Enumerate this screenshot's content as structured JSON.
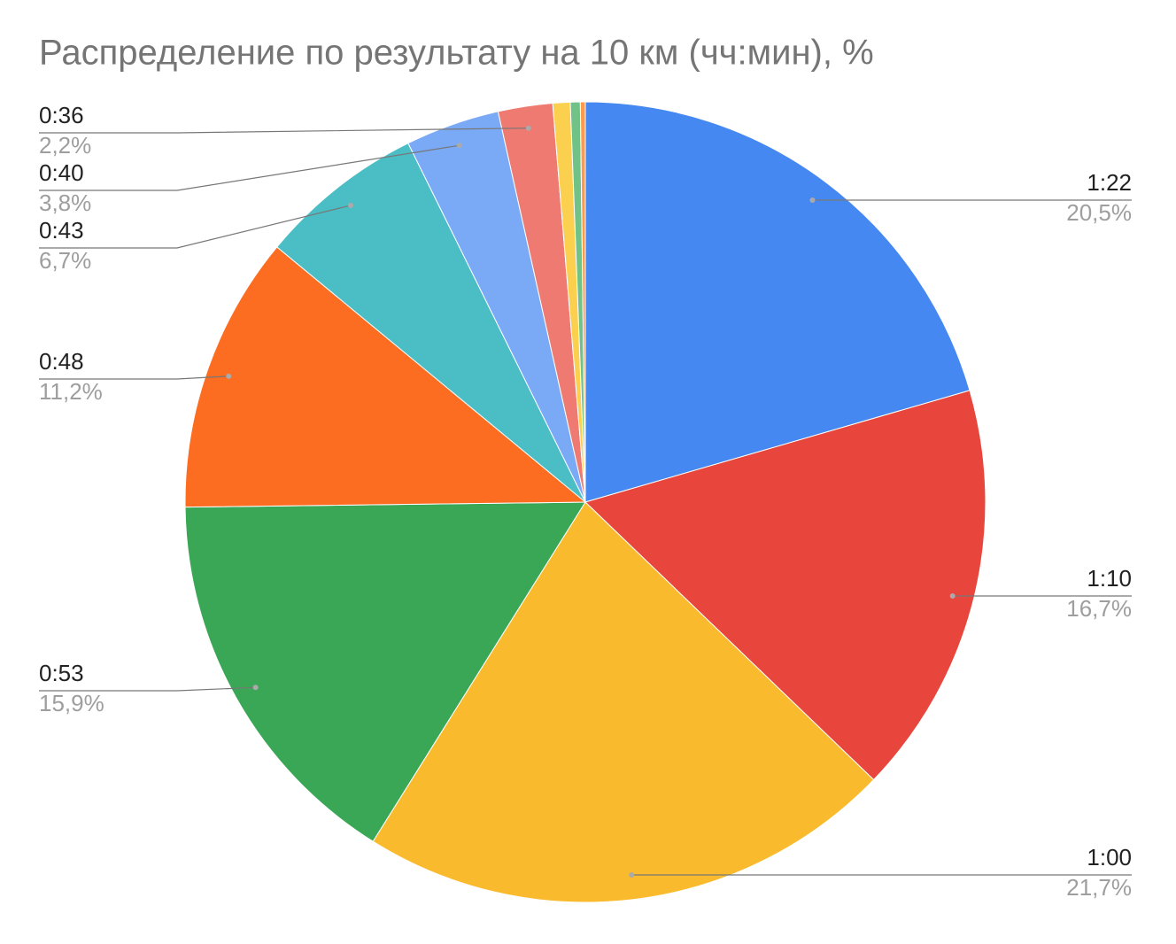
{
  "chart_data": {
    "type": "pie",
    "title": "Распределение по результату на 10 км (чч:мин), %",
    "categories": [
      "1:22",
      "1:10",
      "1:00",
      "0:53",
      "0:48",
      "0:43",
      "0:40",
      "0:36",
      null,
      null,
      null
    ],
    "values": [
      20.5,
      16.7,
      21.7,
      15.9,
      11.2,
      6.7,
      3.8,
      2.2,
      0.7,
      0.4,
      0.2
    ],
    "value_labels": [
      "20,5%",
      "16,7%",
      "21,7%",
      "15,9%",
      "11,2%",
      "6,7%",
      "3,8%",
      "2,2%",
      null,
      null,
      null
    ],
    "colors": [
      "#4688f1",
      "#e8453c",
      "#f9bb2d",
      "#3aa757",
      "#fc6d22",
      "#4bbdc5",
      "#7aa9f5",
      "#ee7a71",
      "#fcd04f",
      "#71c287",
      "#ff994d"
    ]
  }
}
